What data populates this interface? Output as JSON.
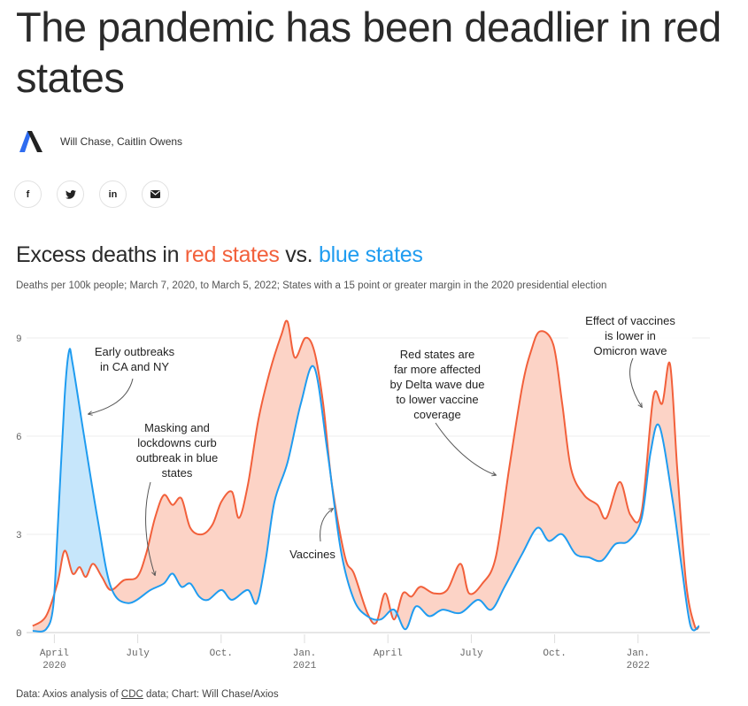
{
  "article": {
    "title": "The pandemic has been deadlier in red states",
    "authors": "Will Chase, Caitlin Owens",
    "share": [
      {
        "name": "facebook",
        "glyph": "f"
      },
      {
        "name": "twitter",
        "glyph": "🐦"
      },
      {
        "name": "linkedin",
        "glyph": "in"
      },
      {
        "name": "email",
        "glyph": "✉"
      }
    ]
  },
  "chart_data": {
    "type": "area",
    "title_parts": [
      "Excess deaths in ",
      "red states",
      " vs. ",
      "blue states"
    ],
    "subtitle": "Deaths per 100k people; March 7, 2020, to March 5, 2022; States with a 15 point or greater margin in the 2020 presidential election",
    "x_unit": "months since March 1, 2020",
    "xlim": [
      0,
      24.3
    ],
    "ylim": [
      0,
      9.5
    ],
    "yticks": [
      0,
      3,
      6,
      9
    ],
    "xticks": [
      {
        "m": 1,
        "l1": "April",
        "l2": "2020"
      },
      {
        "m": 4,
        "l1": "July",
        "l2": ""
      },
      {
        "m": 7,
        "l1": "Oct.",
        "l2": ""
      },
      {
        "m": 10,
        "l1": "Jan.",
        "l2": "2021"
      },
      {
        "m": 13,
        "l1": "April",
        "l2": ""
      },
      {
        "m": 16,
        "l1": "July",
        "l2": ""
      },
      {
        "m": 19,
        "l1": "Oct.",
        "l2": ""
      },
      {
        "m": 22,
        "l1": "Jan.",
        "l2": "2022"
      }
    ],
    "colors": {
      "red": "#f2603b",
      "blue": "#1f9cf0",
      "red_fill": "#fcd3c6",
      "blue_fill": "#c6e6fb"
    },
    "series": [
      {
        "name": "Red states",
        "color": "#f2603b",
        "points": [
          [
            0.22,
            0.2
          ],
          [
            0.7,
            0.5
          ],
          [
            1.11,
            1.5
          ],
          [
            1.37,
            2.5
          ],
          [
            1.66,
            1.8
          ],
          [
            1.91,
            2.0
          ],
          [
            2.13,
            1.7
          ],
          [
            2.39,
            2.1
          ],
          [
            2.71,
            1.7
          ],
          [
            3.03,
            1.3
          ],
          [
            3.5,
            1.6
          ],
          [
            3.98,
            1.7
          ],
          [
            4.3,
            2.4
          ],
          [
            4.62,
            3.5
          ],
          [
            4.94,
            4.2
          ],
          [
            5.25,
            3.9
          ],
          [
            5.57,
            4.1
          ],
          [
            5.89,
            3.2
          ],
          [
            6.31,
            3.0
          ],
          [
            6.69,
            3.3
          ],
          [
            7.01,
            4.0
          ],
          [
            7.39,
            4.3
          ],
          [
            7.64,
            3.5
          ],
          [
            7.96,
            4.5
          ],
          [
            8.34,
            6.5
          ],
          [
            8.76,
            8.0
          ],
          [
            9.17,
            9.1
          ],
          [
            9.39,
            9.5
          ],
          [
            9.65,
            8.4
          ],
          [
            10.03,
            9.0
          ],
          [
            10.35,
            8.6
          ],
          [
            10.67,
            7.0
          ],
          [
            10.99,
            4.5
          ],
          [
            11.46,
            2.3
          ],
          [
            11.78,
            1.8
          ],
          [
            12.26,
            0.6
          ],
          [
            12.58,
            0.3
          ],
          [
            12.9,
            1.2
          ],
          [
            13.22,
            0.4
          ],
          [
            13.54,
            1.2
          ],
          [
            13.85,
            1.1
          ],
          [
            14.17,
            1.4
          ],
          [
            14.65,
            1.2
          ],
          [
            15.13,
            1.3
          ],
          [
            15.61,
            2.1
          ],
          [
            15.92,
            1.2
          ],
          [
            16.4,
            1.5
          ],
          [
            16.88,
            2.3
          ],
          [
            17.36,
            5.0
          ],
          [
            17.83,
            7.5
          ],
          [
            18.15,
            8.6
          ],
          [
            18.47,
            9.2
          ],
          [
            18.95,
            8.8
          ],
          [
            19.27,
            7.0
          ],
          [
            19.59,
            5.0
          ],
          [
            20.06,
            4.2
          ],
          [
            20.54,
            3.9
          ],
          [
            20.86,
            3.5
          ],
          [
            21.34,
            4.6
          ],
          [
            21.72,
            3.6
          ],
          [
            22.13,
            3.7
          ],
          [
            22.55,
            7.2
          ],
          [
            22.87,
            7.0
          ],
          [
            23.15,
            8.2
          ],
          [
            23.41,
            5.0
          ],
          [
            23.73,
            1.5
          ],
          [
            24.04,
            0.2
          ],
          [
            24.2,
            0.2
          ]
        ]
      },
      {
        "name": "Blue states",
        "color": "#1f9cf0",
        "points": [
          [
            0.22,
            0.05
          ],
          [
            0.7,
            0.1
          ],
          [
            0.96,
            0.8
          ],
          [
            1.11,
            3.0
          ],
          [
            1.37,
            7.2
          ],
          [
            1.53,
            8.6
          ],
          [
            1.66,
            8.2
          ],
          [
            2.07,
            6.0
          ],
          [
            2.55,
            3.5
          ],
          [
            3.03,
            1.4
          ],
          [
            3.66,
            0.9
          ],
          [
            4.46,
            1.3
          ],
          [
            4.94,
            1.5
          ],
          [
            5.25,
            1.8
          ],
          [
            5.57,
            1.4
          ],
          [
            5.89,
            1.5
          ],
          [
            6.21,
            1.1
          ],
          [
            6.53,
            1.0
          ],
          [
            7.01,
            1.3
          ],
          [
            7.39,
            1.0
          ],
          [
            7.96,
            1.3
          ],
          [
            8.28,
            0.9
          ],
          [
            8.6,
            2.2
          ],
          [
            8.92,
            4.0
          ],
          [
            9.39,
            5.2
          ],
          [
            9.87,
            7.0
          ],
          [
            10.35,
            8.1
          ],
          [
            10.83,
            5.5
          ],
          [
            11.31,
            2.5
          ],
          [
            11.78,
            1.0
          ],
          [
            12.26,
            0.5
          ],
          [
            12.74,
            0.4
          ],
          [
            13.22,
            0.7
          ],
          [
            13.63,
            0.1
          ],
          [
            14.01,
            0.8
          ],
          [
            14.49,
            0.5
          ],
          [
            14.97,
            0.7
          ],
          [
            15.61,
            0.6
          ],
          [
            16.24,
            1.0
          ],
          [
            16.72,
            0.7
          ],
          [
            17.2,
            1.4
          ],
          [
            17.83,
            2.4
          ],
          [
            18.38,
            3.2
          ],
          [
            18.79,
            2.8
          ],
          [
            19.27,
            3.0
          ],
          [
            19.75,
            2.4
          ],
          [
            20.22,
            2.3
          ],
          [
            20.7,
            2.2
          ],
          [
            21.18,
            2.7
          ],
          [
            21.66,
            2.8
          ],
          [
            22.13,
            3.5
          ],
          [
            22.45,
            5.5
          ],
          [
            22.77,
            6.3
          ],
          [
            23.25,
            4.0
          ],
          [
            23.57,
            2.0
          ],
          [
            23.89,
            0.2
          ],
          [
            24.2,
            0.2
          ]
        ]
      }
    ],
    "annotations": [
      {
        "id": "early",
        "lines": [
          "Early outbreaks",
          "in CA and NY"
        ]
      },
      {
        "id": "masking",
        "lines": [
          "Masking and",
          "lockdowns curb",
          "outbreak in blue",
          "states"
        ]
      },
      {
        "id": "vaccines",
        "lines": [
          "Vaccines"
        ]
      },
      {
        "id": "delta",
        "lines": [
          "Red states are",
          "far more affected",
          "by Delta wave due",
          "to lower vaccine",
          "coverage"
        ]
      },
      {
        "id": "omicron",
        "lines": [
          "Effect of vaccines",
          "is lower in",
          "Omicron wave"
        ]
      }
    ],
    "source_prefix": "Data: Axios analysis of ",
    "source_link": "CDC",
    "source_suffix": " data; Chart: Will Chase/Axios"
  }
}
